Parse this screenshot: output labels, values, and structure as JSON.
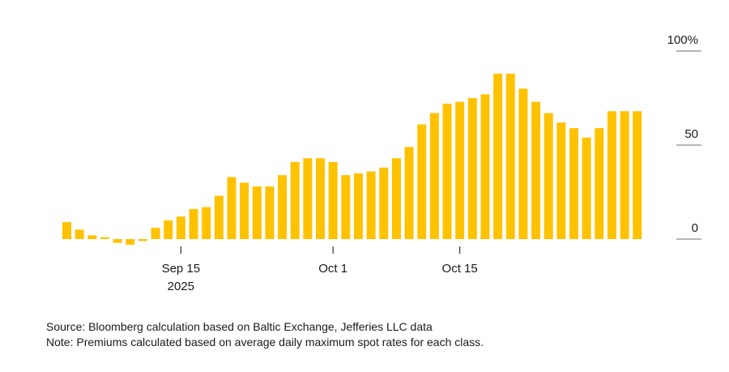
{
  "chart_data": {
    "type": "bar",
    "title": "",
    "xlabel": "",
    "ylabel": "",
    "ylim": [
      -5,
      100
    ],
    "y_ticks": [
      {
        "value": 100,
        "label": "100%"
      },
      {
        "value": 50,
        "label": "50"
      },
      {
        "value": 0,
        "label": "0"
      }
    ],
    "x_ticks": [
      {
        "index": 9,
        "label": "Sep 15",
        "sublabel": "2025"
      },
      {
        "index": 21,
        "label": "Oct 1",
        "sublabel": ""
      },
      {
        "index": 31,
        "label": "Oct 15",
        "sublabel": ""
      }
    ],
    "color": "#FFC200",
    "values": [
      9,
      5,
      2,
      1,
      -2,
      -3,
      -1,
      6,
      10,
      12,
      16,
      17,
      23,
      33,
      30,
      28,
      28,
      34,
      41,
      43,
      43,
      41,
      34,
      35,
      36,
      38,
      43,
      49,
      61,
      67,
      72,
      73,
      75,
      77,
      88,
      88,
      80,
      73,
      67,
      62,
      59,
      54,
      59,
      68,
      68,
      68
    ]
  },
  "notes": {
    "source": "Source: Bloomberg calculation based on Baltic Exchange, Jefferies LLC data",
    "note": "Note: Premiums calculated based on average daily maximum spot rates for each class."
  }
}
